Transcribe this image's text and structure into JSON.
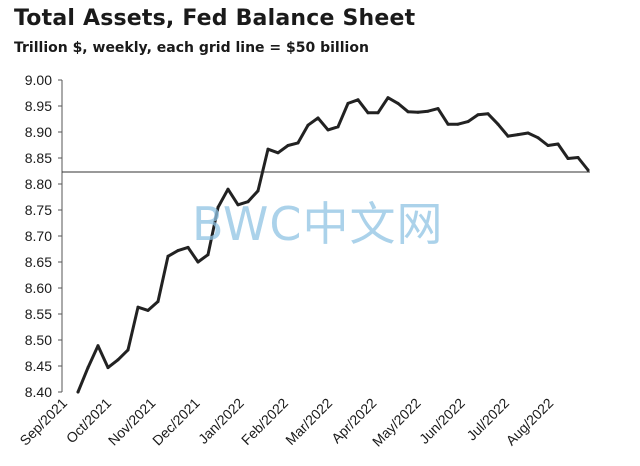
{
  "chart_data": {
    "type": "line",
    "title": "Total Assets, Fed Balance Sheet",
    "subtitle": "Trillion $, weekly, each grid line = $50 billion",
    "xlabel": "",
    "ylabel": "",
    "ylim": [
      8.4,
      9.0
    ],
    "yticks": [
      "8.40",
      "8.45",
      "8.50",
      "8.55",
      "8.60",
      "8.65",
      "8.70",
      "8.75",
      "8.80",
      "8.85",
      "8.90",
      "8.95",
      "9.00"
    ],
    "xtick_labels": [
      "Sep/2021",
      "Oct/2021",
      "Nov/2021",
      "Dec/2021",
      "Jan/2022",
      "Feb/2022",
      "Mar/2022",
      "Apr/2022",
      "May/2022",
      "Jun/2022",
      "Jul/2022",
      "Aug/2022"
    ],
    "grid": false,
    "reference_line": 8.823,
    "series": [
      {
        "values": [
          8.395,
          8.447,
          8.489,
          8.447,
          8.462,
          8.481,
          8.563,
          8.557,
          8.574,
          8.661,
          8.672,
          8.678,
          8.65,
          8.664,
          8.755,
          8.79,
          8.76,
          8.766,
          8.787,
          8.867,
          8.86,
          8.874,
          8.879,
          8.913,
          8.927,
          8.904,
          8.91,
          8.955,
          8.962,
          8.937,
          8.937,
          8.966,
          8.955,
          8.939,
          8.938,
          8.94,
          8.945,
          8.915,
          8.915,
          8.92,
          8.933,
          8.935,
          8.915,
          8.892,
          8.895,
          8.898,
          8.889,
          8.874,
          8.877,
          8.849,
          8.851,
          8.827
        ],
        "color": "#222222"
      }
    ]
  },
  "watermark": "BWC中文网"
}
